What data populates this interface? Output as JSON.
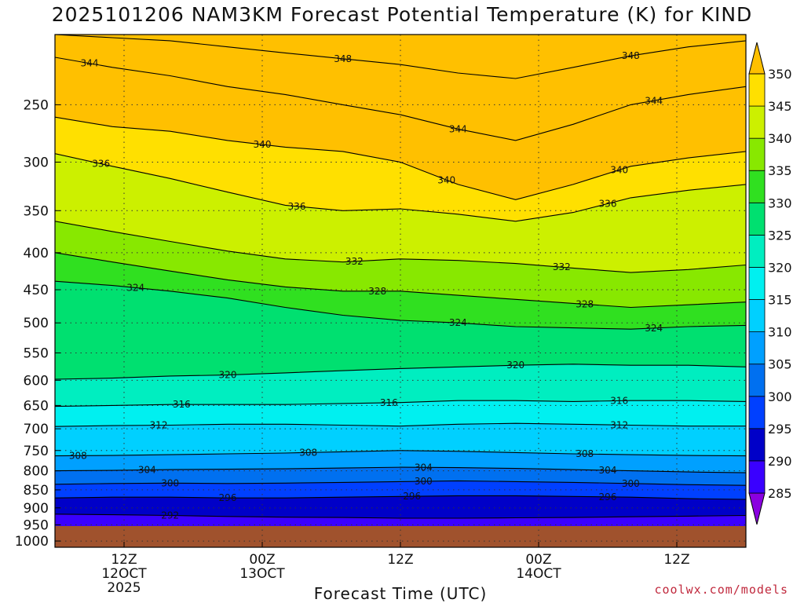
{
  "chart_data": {
    "type": "heatmap",
    "title": "2025101206 NAM3KM Forecast Potential Temperature (K) for KIND",
    "xlabel": "Forecast Time (UTC)",
    "ylabel": "",
    "credit": "coolwx.com/models",
    "x_ticks": [
      {
        "hours": 6,
        "lines": [
          "12Z",
          "12OCT",
          "2025"
        ]
      },
      {
        "hours": 18,
        "lines": [
          "00Z",
          "13OCT"
        ]
      },
      {
        "hours": 30,
        "lines": [
          "12Z"
        ]
      },
      {
        "hours": 42,
        "lines": [
          "00Z",
          "14OCT"
        ]
      },
      {
        "hours": 54,
        "lines": [
          "12Z"
        ]
      }
    ],
    "xlim": [
      0,
      60
    ],
    "y_ticks": [
      250,
      300,
      350,
      400,
      450,
      500,
      550,
      600,
      650,
      700,
      750,
      800,
      850,
      900,
      950,
      1000
    ],
    "ylim": [
      200,
      1020
    ],
    "colorbar": {
      "levels": [
        285,
        290,
        295,
        300,
        305,
        310,
        315,
        320,
        325,
        330,
        335,
        340,
        345,
        350
      ],
      "colors": [
        "#8a00e0",
        "#3a00ff",
        "#0000c8",
        "#0040ff",
        "#0070f0",
        "#00a0ff",
        "#00d0ff",
        "#00f0f0",
        "#00eec0",
        "#00e070",
        "#30e020",
        "#88e800",
        "#ccf000",
        "#ffe000",
        "#ffc000"
      ],
      "ground_color": "#a0522d"
    },
    "series": [
      {
        "name": "292",
        "labels": [
          {
            "hours": 10,
            "text": "292"
          }
        ],
        "p": [
          918,
          920,
          922,
          925,
          927,
          928,
          930,
          930,
          929,
          928,
          926,
          924,
          922
        ]
      },
      {
        "name": "296",
        "labels": [
          {
            "hours": 15,
            "text": "296"
          },
          {
            "hours": 31,
            "text": "296"
          },
          {
            "hours": 48,
            "text": "296"
          }
        ],
        "p": [
          872,
          870,
          870,
          872,
          872,
          870,
          868,
          866,
          866,
          868,
          870,
          874,
          876
        ]
      },
      {
        "name": "300",
        "labels": [
          {
            "hours": 10,
            "text": "300"
          },
          {
            "hours": 32,
            "text": "300"
          },
          {
            "hours": 50,
            "text": "300"
          }
        ],
        "p": [
          835,
          833,
          832,
          833,
          832,
          830,
          828,
          826,
          828,
          830,
          833,
          836,
          838
        ]
      },
      {
        "name": "304",
        "labels": [
          {
            "hours": 8,
            "text": "304"
          },
          {
            "hours": 32,
            "text": "304"
          },
          {
            "hours": 48,
            "text": "304"
          }
        ],
        "p": [
          800,
          799,
          797,
          796,
          795,
          793,
          791,
          792,
          794,
          797,
          800,
          803,
          805
        ]
      },
      {
        "name": "308",
        "labels": [
          {
            "hours": 2,
            "text": "308"
          },
          {
            "hours": 22,
            "text": "308"
          },
          {
            "hours": 46,
            "text": "308"
          }
        ],
        "p": [
          763,
          762,
          760,
          758,
          756,
          753,
          750,
          752,
          755,
          758,
          760,
          762,
          763
        ]
      },
      {
        "name": "312",
        "labels": [
          {
            "hours": 9,
            "text": "312"
          },
          {
            "hours": 49,
            "text": "312"
          }
        ],
        "p": [
          695,
          693,
          692,
          690,
          690,
          692,
          694,
          690,
          688,
          690,
          692,
          694,
          694
        ]
      },
      {
        "name": "316",
        "labels": [
          {
            "hours": 11,
            "text": "316"
          },
          {
            "hours": 29,
            "text": "316"
          },
          {
            "hours": 49,
            "text": "316"
          }
        ],
        "p": [
          652,
          650,
          648,
          648,
          648,
          646,
          644,
          640,
          640,
          642,
          640,
          640,
          642
        ]
      },
      {
        "name": "320",
        "labels": [
          {
            "hours": 15,
            "text": "320"
          },
          {
            "hours": 40,
            "text": "320"
          }
        ],
        "p": [
          598,
          596,
          592,
          590,
          586,
          582,
          578,
          575,
          572,
          570,
          572,
          572,
          575
        ]
      },
      {
        "name": "324",
        "labels": [
          {
            "hours": 7,
            "text": "324"
          },
          {
            "hours": 35,
            "text": "324"
          },
          {
            "hours": 52,
            "text": "324"
          }
        ],
        "p": [
          438,
          444,
          452,
          462,
          476,
          488,
          496,
          500,
          506,
          508,
          510,
          506,
          504
        ]
      },
      {
        "name": "328",
        "labels": [
          {
            "hours": 28,
            "text": "328"
          },
          {
            "hours": 46,
            "text": "328"
          }
        ],
        "p": [
          400,
          412,
          424,
          436,
          446,
          452,
          452,
          458,
          464,
          470,
          476,
          472,
          468
        ]
      },
      {
        "name": "332",
        "labels": [
          {
            "hours": 26,
            "text": "332"
          },
          {
            "hours": 44,
            "text": "332"
          }
        ],
        "p": [
          362,
          374,
          386,
          398,
          408,
          412,
          408,
          410,
          414,
          420,
          426,
          422,
          416
        ]
      },
      {
        "name": "336",
        "labels": [
          {
            "hours": 4,
            "text": "336"
          },
          {
            "hours": 21,
            "text": "336"
          },
          {
            "hours": 48,
            "text": "336"
          }
        ],
        "p": [
          292,
          304,
          316,
          330,
          344,
          350,
          348,
          354,
          362,
          352,
          336,
          328,
          322
        ]
      },
      {
        "name": "340",
        "labels": [
          {
            "hours": 18,
            "text": "340"
          },
          {
            "hours": 34,
            "text": "340"
          },
          {
            "hours": 49,
            "text": "340"
          }
        ],
        "p": [
          260,
          268,
          272,
          280,
          286,
          290,
          300,
          322,
          338,
          322,
          304,
          296,
          290
        ]
      },
      {
        "name": "344",
        "labels": [
          {
            "hours": 3,
            "text": "344"
          },
          {
            "hours": 35,
            "text": "344"
          },
          {
            "hours": 52,
            "text": "344"
          }
        ],
        "p": [
          215,
          222,
          228,
          236,
          242,
          250,
          258,
          270,
          280,
          266,
          250,
          242,
          236
        ]
      },
      {
        "name": "348",
        "labels": [
          {
            "hours": 25,
            "text": "348"
          },
          {
            "hours": 50,
            "text": "348"
          }
        ],
        "p": [
          200,
          202,
          204,
          208,
          212,
          216,
          220,
          226,
          230,
          222,
          214,
          208,
          204
        ]
      }
    ]
  }
}
